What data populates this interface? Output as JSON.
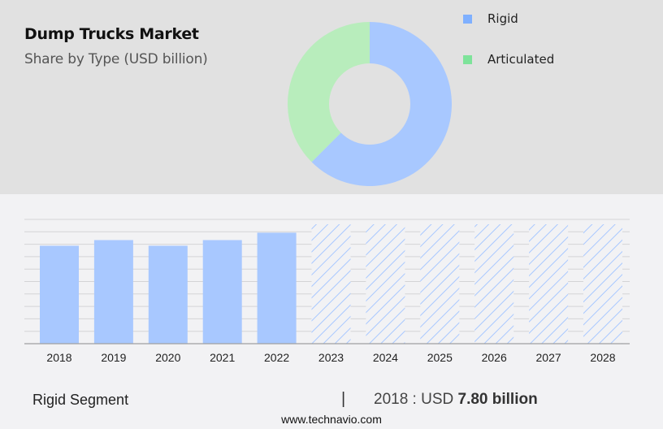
{
  "header": {
    "title": "Dump Trucks Market",
    "subtitle": "Share by Type (USD billion)"
  },
  "legend": {
    "items": [
      {
        "label": "Rigid",
        "color": "#7fb0ff"
      },
      {
        "label": "Articulated",
        "color": "#7ee39a"
      }
    ]
  },
  "colors": {
    "top_band": "#e1e1e1",
    "background": "#f2f2f4",
    "rigid_donut": "#a8c8ff",
    "articulated_donut": "#b8edbc",
    "bar": "#a8c8ff",
    "forecast_hatch": "#a8c8ff",
    "gridline": "#d4d4d6",
    "baseline": "#a0a0a0"
  },
  "footer": {
    "segment_label": "Rigid Segment",
    "separator": "|",
    "year_prefix": "2018 : USD ",
    "value_bold": "7.80 billion",
    "website": "www.technavio.com"
  },
  "chart_data": [
    {
      "type": "pie",
      "variant": "donut",
      "title": "Dump Trucks Market",
      "subtitle": "Share by Type (USD billion)",
      "categories": [
        "Rigid",
        "Articulated"
      ],
      "values": [
        62.5,
        37.5
      ],
      "unit": "percent (estimated from slice angles)",
      "legend_position": "right"
    },
    {
      "type": "bar",
      "title": "Rigid Segment",
      "categories": [
        "2018",
        "2019",
        "2020",
        "2021",
        "2022",
        "2023",
        "2024",
        "2025",
        "2026",
        "2027",
        "2028"
      ],
      "values": [
        7.8,
        8.25,
        7.8,
        8.25,
        8.84,
        null,
        null,
        null,
        null,
        null,
        null
      ],
      "forecast_categories": [
        "2023",
        "2024",
        "2025",
        "2026",
        "2027",
        "2028"
      ],
      "forecast_style": "hatched (values not shown)",
      "xlabel": "",
      "ylabel": "USD billion",
      "ylim": [
        0,
        9.9
      ],
      "grid": true,
      "y_ticks_visible": false,
      "annotation": "2018 : USD 7.80 billion"
    }
  ]
}
